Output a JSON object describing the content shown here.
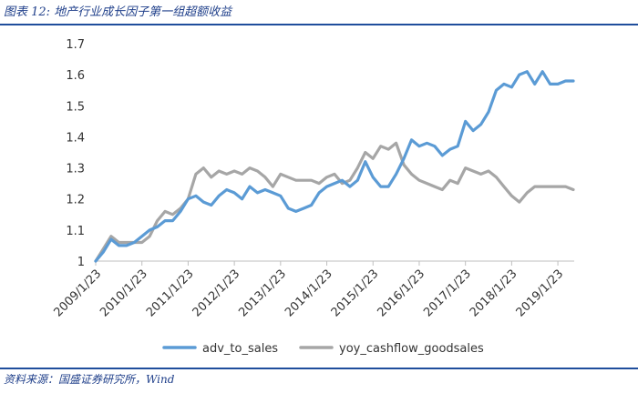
{
  "header": {
    "title": "图表 12:  地产行业成长因子第一组超额收益"
  },
  "footer": {
    "source": "资料来源：国盛证券研究所，Wind"
  },
  "colors": {
    "accent": "#1f4e9c",
    "series_adv": "#5b9bd5",
    "series_yoy": "#a6a6a6"
  },
  "chart_data": {
    "type": "line",
    "title": "",
    "xlabel": "",
    "ylabel": "",
    "ylim": [
      1.0,
      1.7
    ],
    "yticks": [
      "1",
      "1.1",
      "1.2",
      "1.3",
      "1.4",
      "1.5",
      "1.6",
      "1.7"
    ],
    "xticks": [
      "2009/1/23",
      "2010/1/23",
      "2011/1/23",
      "2012/1/23",
      "2013/1/23",
      "2014/1/23",
      "2015/1/23",
      "2016/1/23",
      "2017/1/23",
      "2018/1/23",
      "2019/1/23"
    ],
    "grid": false,
    "legend": "bottom",
    "x": [
      "2009/1",
      "2009/3",
      "2009/5",
      "2009/7",
      "2009/9",
      "2009/11",
      "2010/1",
      "2010/3",
      "2010/5",
      "2010/7",
      "2010/9",
      "2010/11",
      "2011/1",
      "2011/3",
      "2011/5",
      "2011/7",
      "2011/9",
      "2011/11",
      "2012/1",
      "2012/3",
      "2012/5",
      "2012/7",
      "2012/9",
      "2012/11",
      "2013/1",
      "2013/3",
      "2013/5",
      "2013/7",
      "2013/9",
      "2013/11",
      "2014/1",
      "2014/3",
      "2014/5",
      "2014/7",
      "2014/9",
      "2014/11",
      "2015/1",
      "2015/3",
      "2015/5",
      "2015/7",
      "2015/9",
      "2015/11",
      "2016/1",
      "2016/3",
      "2016/5",
      "2016/7",
      "2016/9",
      "2016/11",
      "2017/1",
      "2017/3",
      "2017/5",
      "2017/7",
      "2017/9",
      "2017/11",
      "2018/1",
      "2018/3",
      "2018/5",
      "2018/7",
      "2018/9",
      "2018/11",
      "2019/1",
      "2019/3",
      "2019/5"
    ],
    "series": [
      {
        "name": "adv_to_sales",
        "color": "#5b9bd5",
        "values": [
          1.0,
          1.03,
          1.07,
          1.05,
          1.05,
          1.06,
          1.08,
          1.1,
          1.11,
          1.13,
          1.13,
          1.16,
          1.2,
          1.21,
          1.19,
          1.18,
          1.21,
          1.23,
          1.22,
          1.2,
          1.24,
          1.22,
          1.23,
          1.22,
          1.21,
          1.17,
          1.16,
          1.17,
          1.18,
          1.22,
          1.24,
          1.25,
          1.26,
          1.24,
          1.26,
          1.32,
          1.27,
          1.24,
          1.24,
          1.28,
          1.33,
          1.39,
          1.37,
          1.38,
          1.37,
          1.34,
          1.36,
          1.37,
          1.45,
          1.42,
          1.44,
          1.48,
          1.55,
          1.57,
          1.56,
          1.6,
          1.61,
          1.57,
          1.61,
          1.57,
          1.57,
          1.58,
          1.58
        ]
      },
      {
        "name": "yoy_cashflow_goodsales",
        "color": "#a6a6a6",
        "values": [
          1.0,
          1.04,
          1.08,
          1.06,
          1.06,
          1.06,
          1.06,
          1.08,
          1.13,
          1.16,
          1.15,
          1.17,
          1.2,
          1.28,
          1.3,
          1.27,
          1.29,
          1.28,
          1.29,
          1.28,
          1.3,
          1.29,
          1.27,
          1.24,
          1.28,
          1.27,
          1.26,
          1.26,
          1.26,
          1.25,
          1.27,
          1.28,
          1.25,
          1.26,
          1.3,
          1.35,
          1.33,
          1.37,
          1.36,
          1.38,
          1.31,
          1.28,
          1.26,
          1.25,
          1.24,
          1.23,
          1.26,
          1.25,
          1.3,
          1.29,
          1.28,
          1.29,
          1.27,
          1.24,
          1.21,
          1.19,
          1.22,
          1.24,
          1.24,
          1.24,
          1.24,
          1.24,
          1.23
        ]
      }
    ]
  }
}
